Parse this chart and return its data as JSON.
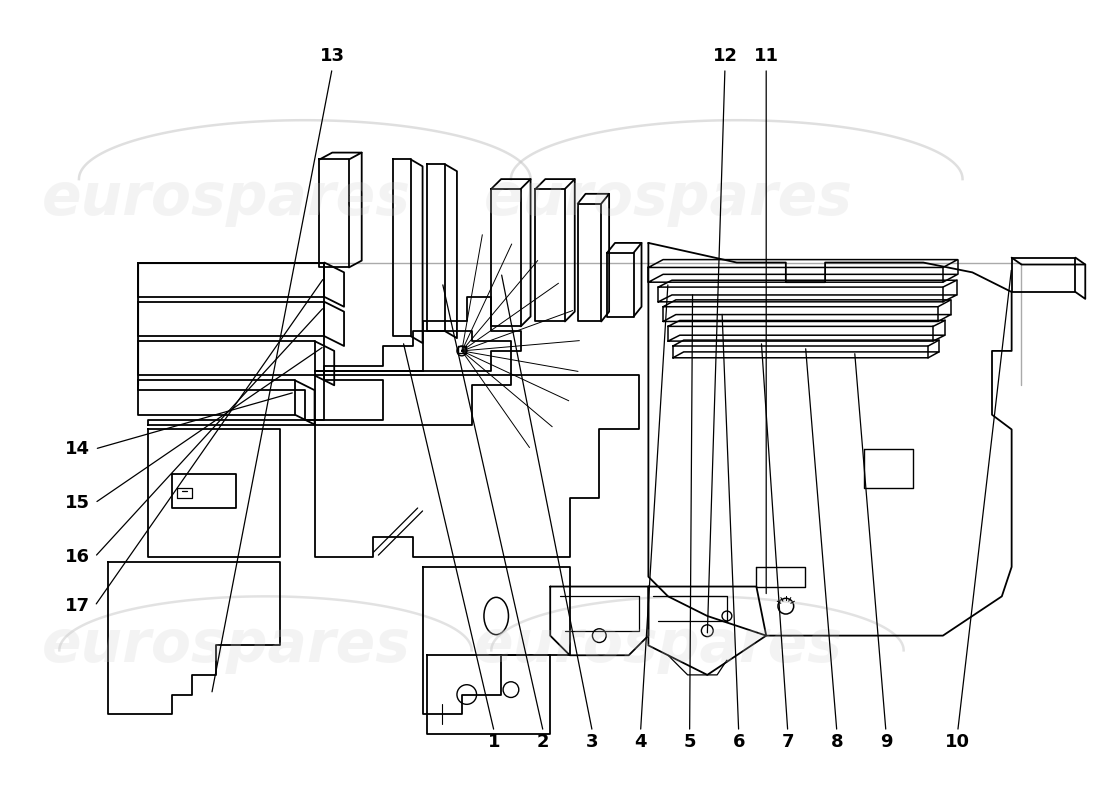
{
  "bg_color": "#ffffff",
  "line_color": "#000000",
  "lw": 1.3,
  "wm_text": "eurospares",
  "wm_color": "#cccccc",
  "wm_alpha": 0.22,
  "wm_fontsize": 42,
  "label_fontsize": 13,
  "label_fontweight": "bold",
  "top_labels": [
    [
      "1",
      483,
      748
    ],
    [
      "2",
      533,
      748
    ],
    [
      "3",
      583,
      748
    ],
    [
      "4",
      632,
      748
    ],
    [
      "5",
      682,
      748
    ],
    [
      "6",
      732,
      748
    ],
    [
      "7",
      782,
      748
    ],
    [
      "8",
      832,
      748
    ],
    [
      "9",
      882,
      748
    ],
    [
      "10",
      955,
      748
    ]
  ],
  "left_labels": [
    [
      "17",
      58,
      610
    ],
    [
      "16",
      58,
      560
    ],
    [
      "15",
      58,
      505
    ],
    [
      "14",
      58,
      450
    ]
  ],
  "bottom_labels": [
    [
      "13",
      318,
      50
    ],
    [
      "12",
      718,
      50
    ],
    [
      "11",
      760,
      50
    ]
  ]
}
